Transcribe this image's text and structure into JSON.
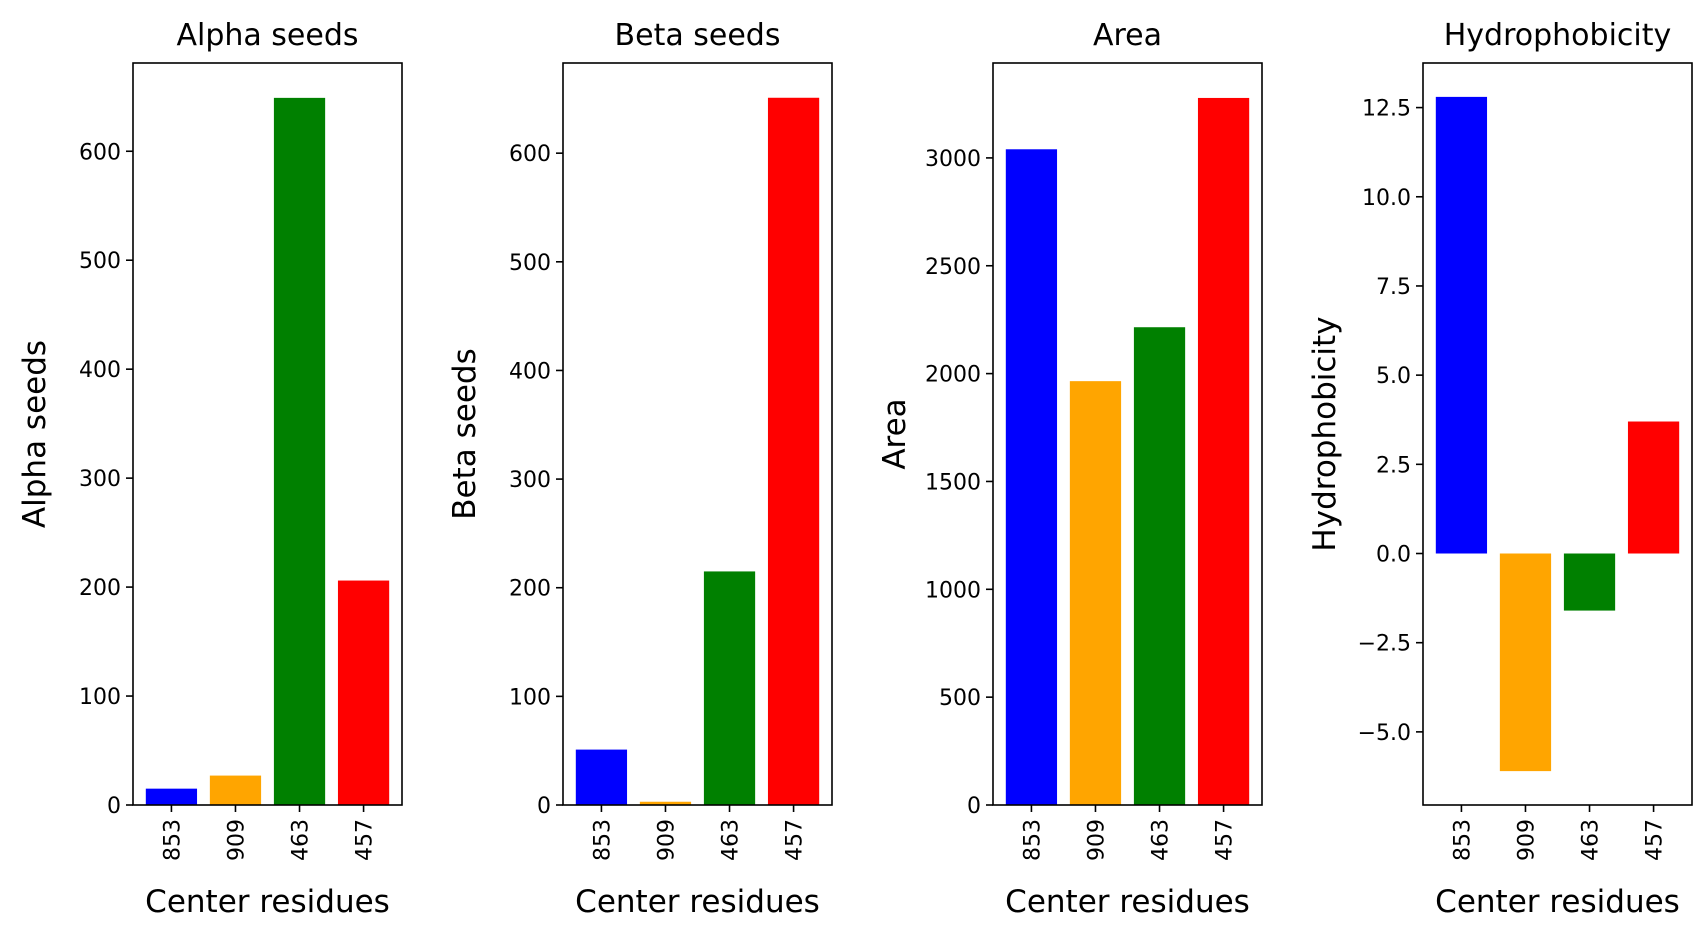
{
  "chart_data": [
    {
      "type": "bar",
      "title": "Alpha seeds",
      "xlabel": "Center residues",
      "ylabel": "Alpha seeds",
      "categories": [
        "853",
        "909",
        "463",
        "457"
      ],
      "values": [
        15,
        27,
        649,
        206
      ],
      "colors": [
        "#0000ff",
        "#ffa500",
        "#008000",
        "#ff0000"
      ],
      "ylim": [
        0,
        681
      ],
      "yticks": [
        0,
        100,
        200,
        300,
        400,
        500,
        600
      ],
      "yticklabels": [
        "0",
        "100",
        "200",
        "300",
        "400",
        "500",
        "600"
      ]
    },
    {
      "type": "bar",
      "title": "Beta seeds",
      "xlabel": "Center residues",
      "ylabel": "Beta seeds",
      "categories": [
        "853",
        "909",
        "463",
        "457"
      ],
      "values": [
        51,
        3,
        215,
        651
      ],
      "colors": [
        "#0000ff",
        "#ffa500",
        "#008000",
        "#ff0000"
      ],
      "ylim": [
        0,
        683
      ],
      "yticks": [
        0,
        100,
        200,
        300,
        400,
        500,
        600
      ],
      "yticklabels": [
        "0",
        "100",
        "200",
        "300",
        "400",
        "500",
        "600"
      ]
    },
    {
      "type": "bar",
      "title": "Area",
      "xlabel": "Center residues",
      "ylabel": "Area",
      "categories": [
        "853",
        "909",
        "463",
        "457"
      ],
      "values": [
        3040,
        1965,
        2215,
        3278
      ],
      "colors": [
        "#0000ff",
        "#ffa500",
        "#008000",
        "#ff0000"
      ],
      "ylim": [
        0,
        3440
      ],
      "yticks": [
        0,
        500,
        1000,
        1500,
        2000,
        2500,
        3000
      ],
      "yticklabels": [
        "0",
        "500",
        "1000",
        "1500",
        "2000",
        "2500",
        "3000"
      ]
    },
    {
      "type": "bar",
      "title": "Hydrophobicity",
      "xlabel": "Center residues",
      "ylabel": "Hydrophobicity",
      "categories": [
        "853",
        "909",
        "463",
        "457"
      ],
      "values": [
        12.8,
        -6.1,
        -1.6,
        3.7
      ],
      "colors": [
        "#0000ff",
        "#ffa500",
        "#008000",
        "#ff0000"
      ],
      "ylim": [
        -7.05,
        13.75
      ],
      "yticks": [
        -5,
        -2.5,
        0,
        2.5,
        5,
        7.5,
        10,
        12.5
      ],
      "yticklabels": [
        "−5.0",
        "−2.5",
        "0.0",
        "2.5",
        "5.0",
        "7.5",
        "10.0",
        "12.5"
      ]
    }
  ]
}
